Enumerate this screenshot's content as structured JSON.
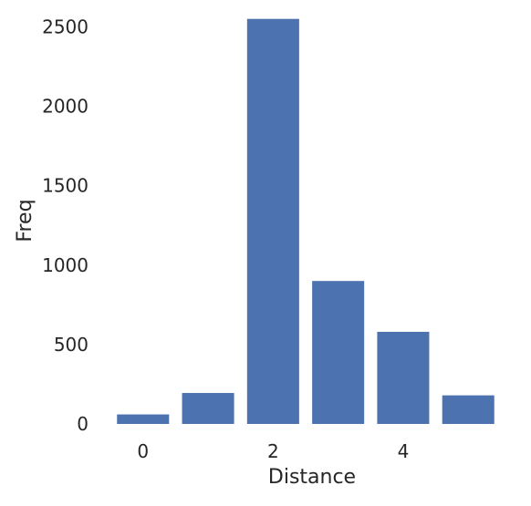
{
  "chart_data": {
    "type": "bar",
    "x": [
      0,
      1,
      2,
      3,
      4,
      5
    ],
    "values": [
      60,
      195,
      2550,
      900,
      580,
      180
    ],
    "xlabel": "Distance",
    "ylabel": "Freq",
    "xticks": [
      0,
      2,
      4
    ],
    "yticks": [
      0,
      500,
      1000,
      1500,
      2000,
      2500
    ],
    "ylim": [
      0,
      2600
    ],
    "xlim": [
      -0.6,
      5.6
    ],
    "bar_color": "#4c72b0",
    "grid": false,
    "legend": "none"
  }
}
